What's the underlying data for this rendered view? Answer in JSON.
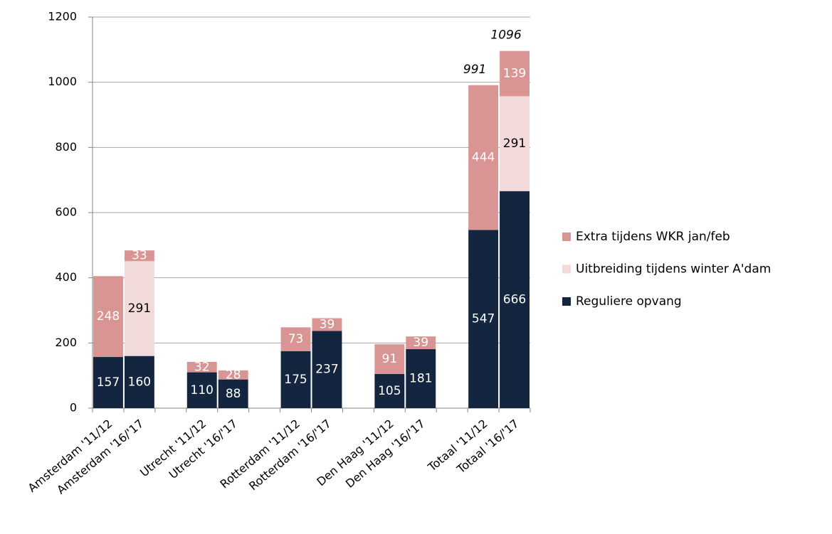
{
  "chart_data": {
    "type": "stacked_bar",
    "categories": [
      "Amsterdam '11/12",
      "Amsterdam '16/'17",
      null,
      "Utrecht '11/12",
      "Utrecht '16/'17",
      null,
      "Rotterdam '11/12",
      "Rotterdam '16/'17",
      null,
      "Den Haag '11/12",
      "Den Haag '16/'17",
      null,
      "Totaal '11/12",
      "Totaal '16/'17"
    ],
    "series": [
      {
        "name": "Reguliere opvang",
        "color": "#14263f",
        "label_color": "#ffffff",
        "values": [
          157,
          160,
          null,
          110,
          88,
          null,
          175,
          237,
          null,
          105,
          181,
          null,
          547,
          666
        ]
      },
      {
        "name": "Uitbreiding tijdens winter A'dam",
        "color": "#f2d9da",
        "label_color": "#000000",
        "values": [
          null,
          291,
          null,
          null,
          null,
          null,
          null,
          null,
          null,
          null,
          null,
          null,
          null,
          291
        ]
      },
      {
        "name": "Extra tijdens WKR jan/feb",
        "color": "#d99594",
        "label_color": "#ffffff",
        "values": [
          248,
          33,
          null,
          32,
          28,
          null,
          73,
          39,
          null,
          91,
          39,
          null,
          444,
          139
        ]
      }
    ],
    "totals": [
      null,
      null,
      null,
      null,
      null,
      null,
      null,
      null,
      null,
      null,
      null,
      null,
      991,
      1096
    ],
    "ylim": [
      0,
      1200
    ],
    "yticks": [
      0,
      200,
      400,
      600,
      800,
      1000,
      1200
    ],
    "grid": true,
    "legend": "right"
  }
}
